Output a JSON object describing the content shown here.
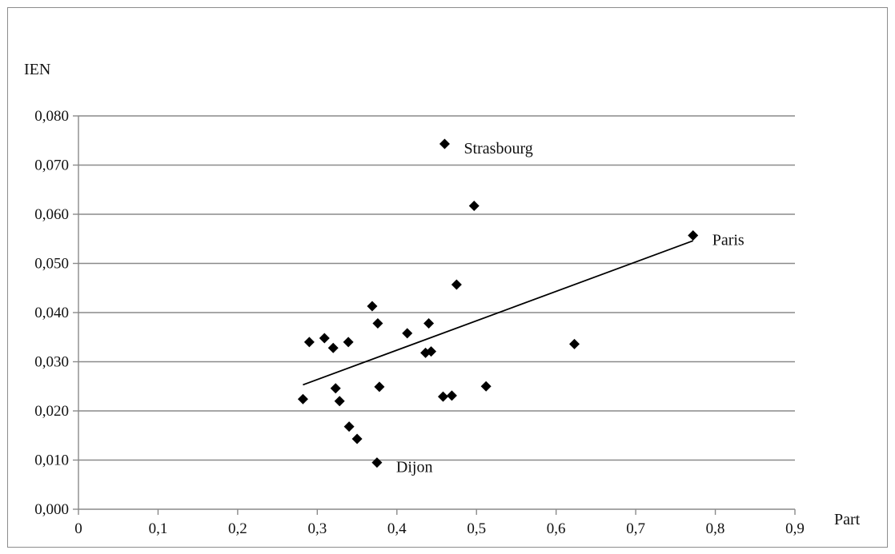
{
  "chart_data": {
    "type": "scatter",
    "xlabel": "Part",
    "ylabel": "IEN",
    "xlim": [
      0,
      0.9
    ],
    "ylim": [
      0,
      0.08
    ],
    "x_ticks": [
      "0",
      "0,1",
      "0,2",
      "0,3",
      "0,4",
      "0,5",
      "0,6",
      "0,7",
      "0,8",
      "0,9"
    ],
    "y_ticks": [
      "0,000",
      "0,010",
      "0,020",
      "0,030",
      "0,040",
      "0,050",
      "0,060",
      "0,070",
      "0,080"
    ],
    "grid": "horizontal",
    "marker_color": "#000000",
    "points": [
      {
        "x": 0.46,
        "y": 0.0743,
        "label": "Strasbourg"
      },
      {
        "x": 0.497,
        "y": 0.0617,
        "label": ""
      },
      {
        "x": 0.772,
        "y": 0.0557,
        "label": "Paris"
      },
      {
        "x": 0.475,
        "y": 0.0457,
        "label": ""
      },
      {
        "x": 0.369,
        "y": 0.0413,
        "label": ""
      },
      {
        "x": 0.376,
        "y": 0.0378,
        "label": ""
      },
      {
        "x": 0.44,
        "y": 0.0378,
        "label": ""
      },
      {
        "x": 0.413,
        "y": 0.0358,
        "label": ""
      },
      {
        "x": 0.29,
        "y": 0.034,
        "label": ""
      },
      {
        "x": 0.309,
        "y": 0.0348,
        "label": ""
      },
      {
        "x": 0.32,
        "y": 0.0328,
        "label": ""
      },
      {
        "x": 0.339,
        "y": 0.034,
        "label": ""
      },
      {
        "x": 0.436,
        "y": 0.0318,
        "label": ""
      },
      {
        "x": 0.443,
        "y": 0.0321,
        "label": ""
      },
      {
        "x": 0.623,
        "y": 0.0336,
        "label": ""
      },
      {
        "x": 0.323,
        "y": 0.0246,
        "label": ""
      },
      {
        "x": 0.378,
        "y": 0.0249,
        "label": ""
      },
      {
        "x": 0.282,
        "y": 0.0224,
        "label": ""
      },
      {
        "x": 0.328,
        "y": 0.022,
        "label": ""
      },
      {
        "x": 0.458,
        "y": 0.0229,
        "label": ""
      },
      {
        "x": 0.469,
        "y": 0.0231,
        "label": ""
      },
      {
        "x": 0.512,
        "y": 0.025,
        "label": ""
      },
      {
        "x": 0.34,
        "y": 0.0168,
        "label": ""
      },
      {
        "x": 0.35,
        "y": 0.0143,
        "label": ""
      },
      {
        "x": 0.375,
        "y": 0.0095,
        "label": "Dijon"
      }
    ],
    "trendline": {
      "x": [
        0.282,
        0.772
      ],
      "y": [
        0.0253,
        0.0546
      ]
    }
  }
}
